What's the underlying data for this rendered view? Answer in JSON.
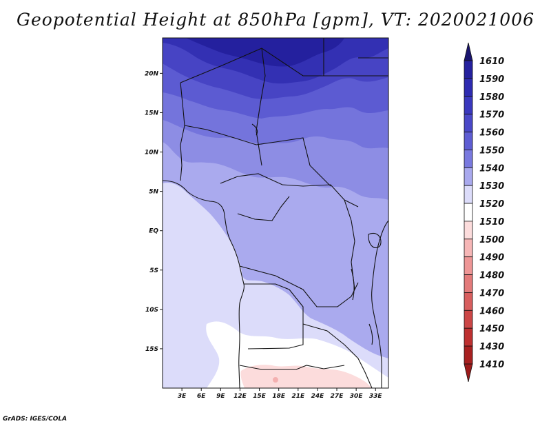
{
  "title": "Geopotential Height at 850hPa [gpm], VT: 2020021006",
  "credit": "GrADS: IGES/COLA",
  "map": {
    "lon_range": [
      0,
      35
    ],
    "lat_range": [
      -20,
      24.5
    ],
    "lat_ticks": [
      {
        "value": 20,
        "label": "20N"
      },
      {
        "value": 15,
        "label": "15N"
      },
      {
        "value": 10,
        "label": "10N"
      },
      {
        "value": 5,
        "label": "5N"
      },
      {
        "value": 0,
        "label": "EQ"
      },
      {
        "value": -5,
        "label": "5S"
      },
      {
        "value": -10,
        "label": "10S"
      },
      {
        "value": -15,
        "label": "15S"
      }
    ],
    "lon_ticks": [
      {
        "value": 3,
        "label": "3E"
      },
      {
        "value": 6,
        "label": "6E"
      },
      {
        "value": 9,
        "label": "9E"
      },
      {
        "value": 12,
        "label": "12E"
      },
      {
        "value": 15,
        "label": "15E"
      },
      {
        "value": 18,
        "label": "18E"
      },
      {
        "value": 21,
        "label": "21E"
      },
      {
        "value": 24,
        "label": "24E"
      },
      {
        "value": 27,
        "label": "27E"
      },
      {
        "value": 30,
        "label": "30E"
      },
      {
        "value": 33,
        "label": "33E"
      }
    ]
  },
  "colorbar": {
    "levels": [
      {
        "label": "1610",
        "color": "#1c1a8c"
      },
      {
        "label": "1590",
        "color": "#25219e"
      },
      {
        "label": "1580",
        "color": "#2e2bb1"
      },
      {
        "label": "1570",
        "color": "#3a38be"
      },
      {
        "label": "1560",
        "color": "#4a48c8"
      },
      {
        "label": "1550",
        "color": "#5e5dd3"
      },
      {
        "label": "1540",
        "color": "#7979df"
      },
      {
        "label": "1530",
        "color": "#a9a9ee"
      },
      {
        "label": "1520",
        "color": "#dcdcfa"
      },
      {
        "label": "1510",
        "color": "#ffffff"
      },
      {
        "label": "1500",
        "color": "#fcdcdc"
      },
      {
        "label": "1490",
        "color": "#f6b6b6"
      },
      {
        "label": "1480",
        "color": "#ee9696"
      },
      {
        "label": "1470",
        "color": "#e37a7a"
      },
      {
        "label": "1460",
        "color": "#d85e5e"
      },
      {
        "label": "1450",
        "color": "#cc4646"
      },
      {
        "label": "1430",
        "color": "#be3030"
      },
      {
        "label": "1410",
        "color": "#a82020"
      }
    ],
    "top_color": "#1a1570",
    "bottom_color": "#9c1a1a"
  }
}
